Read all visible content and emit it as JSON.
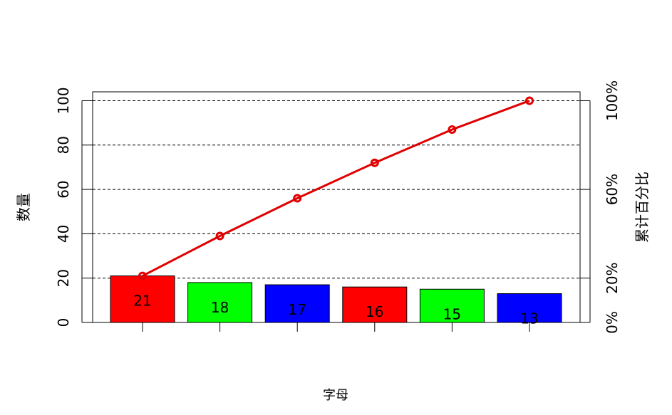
{
  "chart_data": {
    "type": "bar",
    "categories": [
      "",
      "",
      "",
      "",
      "",
      ""
    ],
    "values": [
      21,
      18,
      17,
      16,
      15,
      13
    ],
    "bar_labels": [
      "21",
      "18",
      "17",
      "16",
      "15",
      "13"
    ],
    "bar_colors": [
      "#ff0000",
      "#00ff00",
      "#0000ff",
      "#ff0000",
      "#00ff00",
      "#0000ff"
    ],
    "xlabel": "字母",
    "ylabel": "数量",
    "ylim": [
      0,
      104
    ],
    "yticks": [
      0,
      20,
      40,
      60,
      80,
      100
    ],
    "ytick_labels": [
      "0",
      "20",
      "40",
      "60",
      "80",
      "100"
    ],
    "y2label": "累计百分比",
    "y2ticks": [
      0,
      20,
      60,
      100
    ],
    "y2tick_labels": [
      "0%",
      "20%",
      "60%",
      "100%"
    ],
    "cumulative_line": {
      "color": "#e00000",
      "values_percent": [
        21,
        39,
        56,
        72,
        87,
        100
      ]
    },
    "grid": {
      "type": "dashed-horizontal",
      "at": [
        20,
        40,
        60,
        80,
        100
      ]
    }
  }
}
